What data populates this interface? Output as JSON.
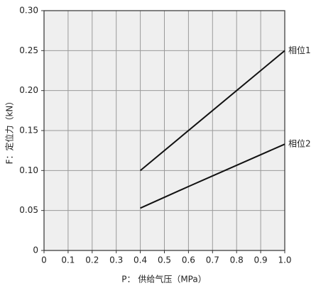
{
  "chart_data": {
    "type": "line",
    "x_label": "P： 供给气压（MPa）",
    "y_label": "F：定位力（kN）",
    "xlim": [
      0,
      1
    ],
    "ylim": [
      0,
      0.3
    ],
    "xticks": [
      0,
      0.1,
      0.2,
      0.3,
      0.4,
      0.5,
      0.6,
      0.7,
      0.8,
      0.9,
      {
        "value": 1,
        "label": "1.0"
      }
    ],
    "yticks": [
      0,
      0.05,
      {
        "value": 0.1,
        "label": "0.10"
      },
      0.15,
      {
        "value": 0.2,
        "label": "0.20"
      },
      0.25,
      {
        "value": 0.3,
        "label": "0.30"
      }
    ],
    "grid": true,
    "series": [
      {
        "name": "相位1",
        "color": "#111111",
        "x": [
          0.4,
          1.0
        ],
        "values": [
          0.1,
          0.25
        ]
      },
      {
        "name": "相位2",
        "color": "#111111",
        "x": [
          0.4,
          0.6,
          1.0
        ],
        "values": [
          0.053,
          0.08,
          0.133
        ]
      }
    ]
  }
}
